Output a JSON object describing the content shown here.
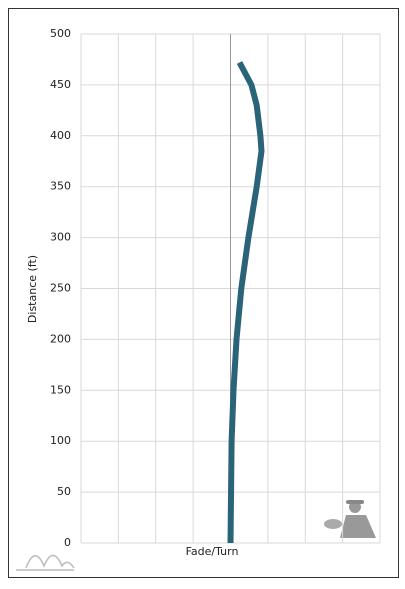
{
  "chart_data": {
    "type": "line",
    "y_label": "Distance (ft)",
    "x_label": "Fade/Turn",
    "x": [
      0,
      0.03,
      0.08,
      0.16,
      0.29,
      0.48,
      0.7,
      0.83,
      0.8,
      0.7,
      0.56,
      0.24
    ],
    "series": [
      {
        "color": "#2a6478",
        "values": [
          0,
          100,
          150,
          200,
          250,
          300,
          350,
          385,
          400,
          430,
          450,
          472
        ]
      }
    ],
    "xlim": [
      -4,
      4
    ],
    "xticks": [
      -4,
      -3,
      -2,
      -1,
      0,
      1,
      2,
      3,
      4
    ],
    "ylim": [
      0,
      500
    ],
    "yticks": [
      0,
      50,
      100,
      150,
      200,
      250,
      300,
      350,
      400,
      450,
      500
    ],
    "grid": true
  }
}
